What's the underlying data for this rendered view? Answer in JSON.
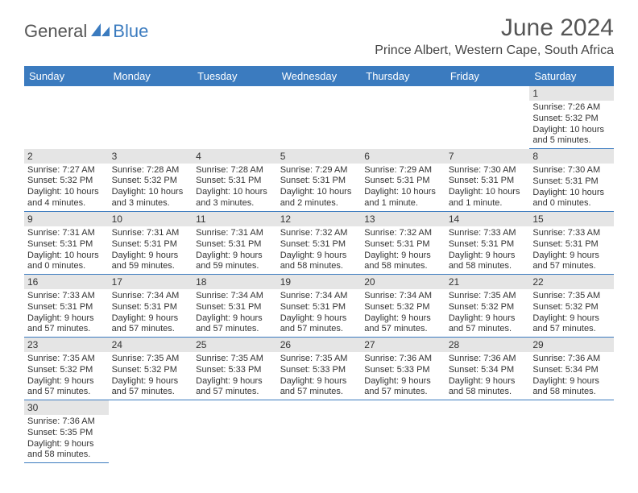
{
  "colors": {
    "header_bg": "#3B7BBF",
    "header_fg": "#ffffff",
    "daynum_bg": "#E5E5E5",
    "border": "#3B7BBF",
    "text": "#333333",
    "logo_blue": "#3B7BBF"
  },
  "logo": {
    "part1": "General",
    "part2": "Blue"
  },
  "title": {
    "month": "June 2024",
    "location": "Prince Albert, Western Cape, South Africa"
  },
  "day_headers": [
    "Sunday",
    "Monday",
    "Tuesday",
    "Wednesday",
    "Thursday",
    "Friday",
    "Saturday"
  ],
  "weeks": [
    [
      null,
      null,
      null,
      null,
      null,
      null,
      {
        "n": "1",
        "sr": "Sunrise: 7:26 AM",
        "ss": "Sunset: 5:32 PM",
        "dl": "Daylight: 10 hours and 5 minutes."
      }
    ],
    [
      {
        "n": "2",
        "sr": "Sunrise: 7:27 AM",
        "ss": "Sunset: 5:32 PM",
        "dl": "Daylight: 10 hours and 4 minutes."
      },
      {
        "n": "3",
        "sr": "Sunrise: 7:28 AM",
        "ss": "Sunset: 5:32 PM",
        "dl": "Daylight: 10 hours and 3 minutes."
      },
      {
        "n": "4",
        "sr": "Sunrise: 7:28 AM",
        "ss": "Sunset: 5:31 PM",
        "dl": "Daylight: 10 hours and 3 minutes."
      },
      {
        "n": "5",
        "sr": "Sunrise: 7:29 AM",
        "ss": "Sunset: 5:31 PM",
        "dl": "Daylight: 10 hours and 2 minutes."
      },
      {
        "n": "6",
        "sr": "Sunrise: 7:29 AM",
        "ss": "Sunset: 5:31 PM",
        "dl": "Daylight: 10 hours and 1 minute."
      },
      {
        "n": "7",
        "sr": "Sunrise: 7:30 AM",
        "ss": "Sunset: 5:31 PM",
        "dl": "Daylight: 10 hours and 1 minute."
      },
      {
        "n": "8",
        "sr": "Sunrise: 7:30 AM",
        "ss": "Sunset: 5:31 PM",
        "dl": "Daylight: 10 hours and 0 minutes."
      }
    ],
    [
      {
        "n": "9",
        "sr": "Sunrise: 7:31 AM",
        "ss": "Sunset: 5:31 PM",
        "dl": "Daylight: 10 hours and 0 minutes."
      },
      {
        "n": "10",
        "sr": "Sunrise: 7:31 AM",
        "ss": "Sunset: 5:31 PM",
        "dl": "Daylight: 9 hours and 59 minutes."
      },
      {
        "n": "11",
        "sr": "Sunrise: 7:31 AM",
        "ss": "Sunset: 5:31 PM",
        "dl": "Daylight: 9 hours and 59 minutes."
      },
      {
        "n": "12",
        "sr": "Sunrise: 7:32 AM",
        "ss": "Sunset: 5:31 PM",
        "dl": "Daylight: 9 hours and 58 minutes."
      },
      {
        "n": "13",
        "sr": "Sunrise: 7:32 AM",
        "ss": "Sunset: 5:31 PM",
        "dl": "Daylight: 9 hours and 58 minutes."
      },
      {
        "n": "14",
        "sr": "Sunrise: 7:33 AM",
        "ss": "Sunset: 5:31 PM",
        "dl": "Daylight: 9 hours and 58 minutes."
      },
      {
        "n": "15",
        "sr": "Sunrise: 7:33 AM",
        "ss": "Sunset: 5:31 PM",
        "dl": "Daylight: 9 hours and 57 minutes."
      }
    ],
    [
      {
        "n": "16",
        "sr": "Sunrise: 7:33 AM",
        "ss": "Sunset: 5:31 PM",
        "dl": "Daylight: 9 hours and 57 minutes."
      },
      {
        "n": "17",
        "sr": "Sunrise: 7:34 AM",
        "ss": "Sunset: 5:31 PM",
        "dl": "Daylight: 9 hours and 57 minutes."
      },
      {
        "n": "18",
        "sr": "Sunrise: 7:34 AM",
        "ss": "Sunset: 5:31 PM",
        "dl": "Daylight: 9 hours and 57 minutes."
      },
      {
        "n": "19",
        "sr": "Sunrise: 7:34 AM",
        "ss": "Sunset: 5:31 PM",
        "dl": "Daylight: 9 hours and 57 minutes."
      },
      {
        "n": "20",
        "sr": "Sunrise: 7:34 AM",
        "ss": "Sunset: 5:32 PM",
        "dl": "Daylight: 9 hours and 57 minutes."
      },
      {
        "n": "21",
        "sr": "Sunrise: 7:35 AM",
        "ss": "Sunset: 5:32 PM",
        "dl": "Daylight: 9 hours and 57 minutes."
      },
      {
        "n": "22",
        "sr": "Sunrise: 7:35 AM",
        "ss": "Sunset: 5:32 PM",
        "dl": "Daylight: 9 hours and 57 minutes."
      }
    ],
    [
      {
        "n": "23",
        "sr": "Sunrise: 7:35 AM",
        "ss": "Sunset: 5:32 PM",
        "dl": "Daylight: 9 hours and 57 minutes."
      },
      {
        "n": "24",
        "sr": "Sunrise: 7:35 AM",
        "ss": "Sunset: 5:32 PM",
        "dl": "Daylight: 9 hours and 57 minutes."
      },
      {
        "n": "25",
        "sr": "Sunrise: 7:35 AM",
        "ss": "Sunset: 5:33 PM",
        "dl": "Daylight: 9 hours and 57 minutes."
      },
      {
        "n": "26",
        "sr": "Sunrise: 7:35 AM",
        "ss": "Sunset: 5:33 PM",
        "dl": "Daylight: 9 hours and 57 minutes."
      },
      {
        "n": "27",
        "sr": "Sunrise: 7:36 AM",
        "ss": "Sunset: 5:33 PM",
        "dl": "Daylight: 9 hours and 57 minutes."
      },
      {
        "n": "28",
        "sr": "Sunrise: 7:36 AM",
        "ss": "Sunset: 5:34 PM",
        "dl": "Daylight: 9 hours and 58 minutes."
      },
      {
        "n": "29",
        "sr": "Sunrise: 7:36 AM",
        "ss": "Sunset: 5:34 PM",
        "dl": "Daylight: 9 hours and 58 minutes."
      }
    ],
    [
      {
        "n": "30",
        "sr": "Sunrise: 7:36 AM",
        "ss": "Sunset: 5:35 PM",
        "dl": "Daylight: 9 hours and 58 minutes."
      },
      null,
      null,
      null,
      null,
      null,
      null
    ]
  ]
}
